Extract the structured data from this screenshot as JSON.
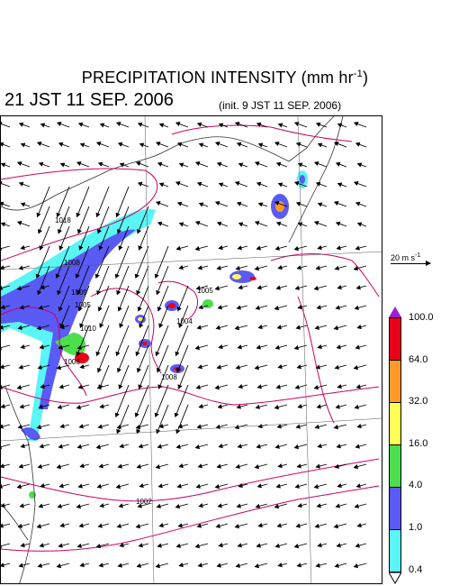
{
  "title": {
    "main": "PRECIPITATION INTENSITY (mm hr",
    "unit_sup": "-1",
    "close": ")"
  },
  "valid_time": "21 JST 11 SEP. 2006",
  "init_time": "(init. 9 JST 11 SEP. 2006)",
  "reference_vector": {
    "label": "20 m s",
    "sup": "-1"
  },
  "colorbar": {
    "levels": [
      "100.0",
      "64.0",
      "32.0",
      "16.0",
      "4.0",
      "1.0",
      "0.4"
    ],
    "colors": [
      "#e8001a",
      "#ff9a2a",
      "#ffff58",
      "#4cde4c",
      "#5a5af5",
      "#5af5f5"
    ],
    "over_color": "#9b1fd6",
    "under_color": "#ffffff"
  },
  "isobars": [
    "1018",
    "1008",
    "1009",
    "1005",
    "1010",
    "1006",
    "1004",
    "1005",
    "1002",
    "1008"
  ],
  "isobar_color": "#cc0066"
}
